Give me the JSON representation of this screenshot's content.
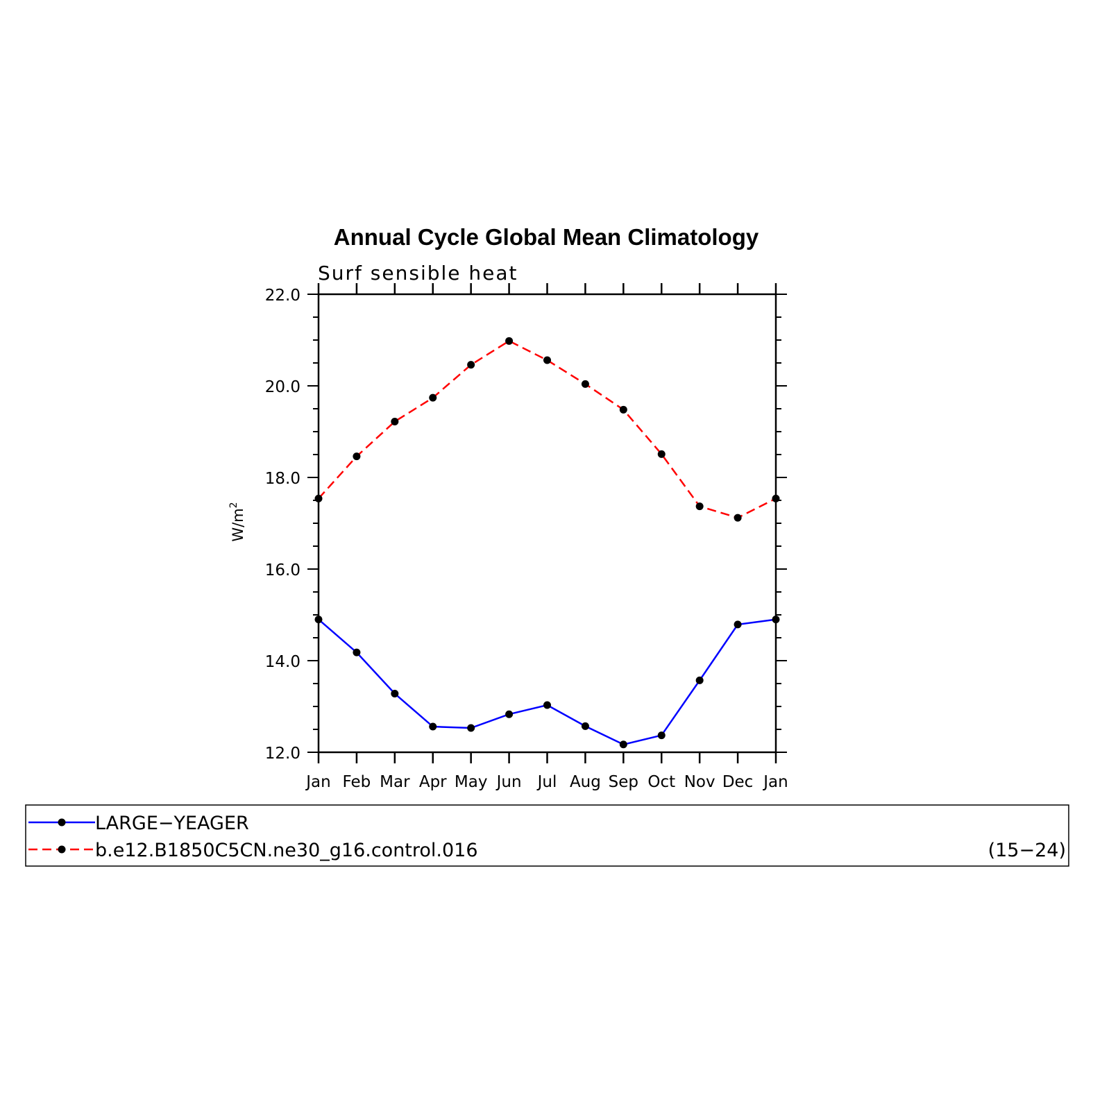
{
  "chart_data": {
    "type": "line",
    "title": "Annual Cycle Global Mean Climatology",
    "subtitle": "Surf  sensible  heat",
    "ylabel": "W/m",
    "ylabel_sup": "2",
    "categories": [
      "Jan",
      "Feb",
      "Mar",
      "Apr",
      "May",
      "Jun",
      "Jul",
      "Aug",
      "Sep",
      "Oct",
      "Nov",
      "Dec",
      "Jan"
    ],
    "ylim": [
      12.0,
      22.0
    ],
    "yticks": [
      "12.0",
      "14.0",
      "16.0",
      "18.0",
      "20.0",
      "22.0"
    ],
    "grid": false,
    "legend_position": "bottom",
    "series": [
      {
        "name": "LARGE−YEAGER",
        "color": "#0000ff",
        "style": "solid",
        "values": [
          14.9,
          14.18,
          13.28,
          12.56,
          12.53,
          12.83,
          13.03,
          12.57,
          12.17,
          12.37,
          13.57,
          14.79,
          14.9
        ]
      },
      {
        "name": "b.e12.B1850C5CN.ne30_g16.control.016",
        "color": "#ff0000",
        "style": "dashed",
        "values": [
          17.54,
          18.46,
          19.22,
          19.74,
          20.46,
          20.98,
          20.56,
          20.04,
          19.48,
          18.51,
          17.37,
          17.12,
          17.54
        ]
      }
    ],
    "legend_note": "(15−24)"
  }
}
